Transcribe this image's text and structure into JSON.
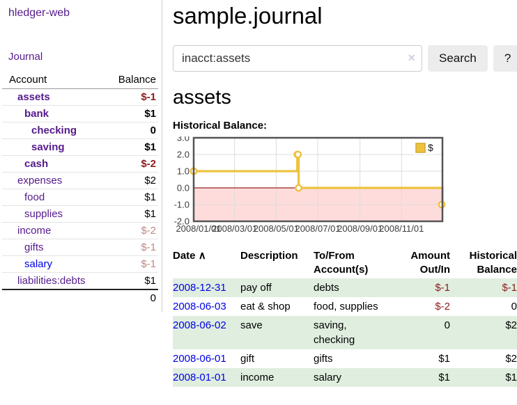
{
  "sidebar": {
    "brand": "hledger-web",
    "nav_journal": "Journal",
    "accounts_table": {
      "headers": [
        "Account",
        "Balance"
      ],
      "rows": [
        {
          "name": "assets",
          "indent": 1,
          "balance": "$-1",
          "bold": true,
          "balance_style": "negative"
        },
        {
          "name": "bank",
          "indent": 2,
          "balance": "$1",
          "bold": true,
          "balance_style": "normal"
        },
        {
          "name": "checking",
          "indent": 3,
          "balance": "0",
          "bold": true,
          "balance_style": "normal"
        },
        {
          "name": "saving",
          "indent": 3,
          "balance": "$1",
          "bold": true,
          "balance_style": "normal"
        },
        {
          "name": "cash",
          "indent": 2,
          "balance": "$-2",
          "bold": true,
          "balance_style": "negative"
        },
        {
          "name": "expenses",
          "indent": 1,
          "balance": "$2",
          "bold": false,
          "balance_style": "normal"
        },
        {
          "name": "food",
          "indent": 2,
          "balance": "$1",
          "bold": false,
          "balance_style": "normal"
        },
        {
          "name": "supplies",
          "indent": 2,
          "balance": "$1",
          "bold": false,
          "balance_style": "normal"
        },
        {
          "name": "income",
          "indent": 1,
          "balance": "$-2",
          "bold": false,
          "balance_style": "negative-faded"
        },
        {
          "name": "gifts",
          "indent": 2,
          "balance": "$-1",
          "bold": false,
          "balance_style": "negative-faded"
        },
        {
          "name": "salary",
          "indent": 2,
          "balance": "$-1",
          "bold": false,
          "balance_style": "negative-faded",
          "link_style": "unvisited"
        },
        {
          "name": "liabilities:debts",
          "indent": 1,
          "balance": "$1",
          "bold": false,
          "balance_style": "normal"
        }
      ],
      "total": "0"
    }
  },
  "header": {
    "title": "sample.journal"
  },
  "search": {
    "value": "inacct:assets",
    "clear_icon": "×",
    "search_label": "Search",
    "help_label": "?"
  },
  "account_page": {
    "title": "assets",
    "chart_label": "Historical Balance:"
  },
  "chart_data": {
    "type": "line",
    "step": true,
    "title": "Historical Balance",
    "series": [
      {
        "name": "$",
        "color": "#edc240",
        "points": [
          [
            "2008-01-01",
            1
          ],
          [
            "2008-06-01",
            2
          ],
          [
            "2008-06-02",
            2
          ],
          [
            "2008-06-03",
            0
          ],
          [
            "2008-12-31",
            -1
          ]
        ]
      }
    ],
    "ylim": [
      -2.0,
      3.0
    ],
    "yticks": [
      "3.0",
      "2.0",
      "1.0",
      "0.0",
      "-1.0",
      "-2.0"
    ],
    "xticks": [
      "2008/01/01",
      "2008/03/01",
      "2008/05/01",
      "2008/07/01",
      "2008/09/01",
      "2008/11/01"
    ],
    "xrange": [
      "2008-01-01",
      "2008-12-31"
    ],
    "legend_position": "top-right",
    "grid": true,
    "negative_region_color": "#ffdcdc",
    "zero_line_color": "#992222",
    "gridline_color": "#dcdcdc",
    "border_color": "#545454"
  },
  "register_table": {
    "sort_icon": "∧",
    "headers": [
      "Date",
      "Description",
      "To/From Account(s)",
      "Amount Out/In",
      "Historical Balance"
    ],
    "rows": [
      {
        "date": "2008-12-31",
        "description": "pay off",
        "accounts": "debts",
        "amount": "$-1",
        "amount_negative": true,
        "balance": "$-1",
        "balance_negative": true
      },
      {
        "date": "2008-06-03",
        "description": "eat & shop",
        "accounts": "food, supplies",
        "amount": "$-2",
        "amount_negative": true,
        "balance": "0",
        "balance_negative": false
      },
      {
        "date": "2008-06-02",
        "description": "save",
        "accounts": "saving, checking",
        "amount": "0",
        "amount_negative": false,
        "balance": "$2",
        "balance_negative": false
      },
      {
        "date": "2008-06-01",
        "description": "gift",
        "accounts": "gifts",
        "amount": "$1",
        "amount_negative": false,
        "balance": "$2",
        "balance_negative": false
      },
      {
        "date": "2008-01-01",
        "description": "income",
        "accounts": "salary",
        "amount": "$1",
        "amount_negative": false,
        "balance": "$1",
        "balance_negative": false
      }
    ]
  },
  "colors": {
    "link_purple": "#551a8b",
    "link_blue": "#0000e6",
    "negative": "#8b1c1c",
    "negative_faded": "#bf8785",
    "row_alt_green": "#dfeedf",
    "chart_line": "#edc240",
    "button_bg": "#ececec"
  }
}
